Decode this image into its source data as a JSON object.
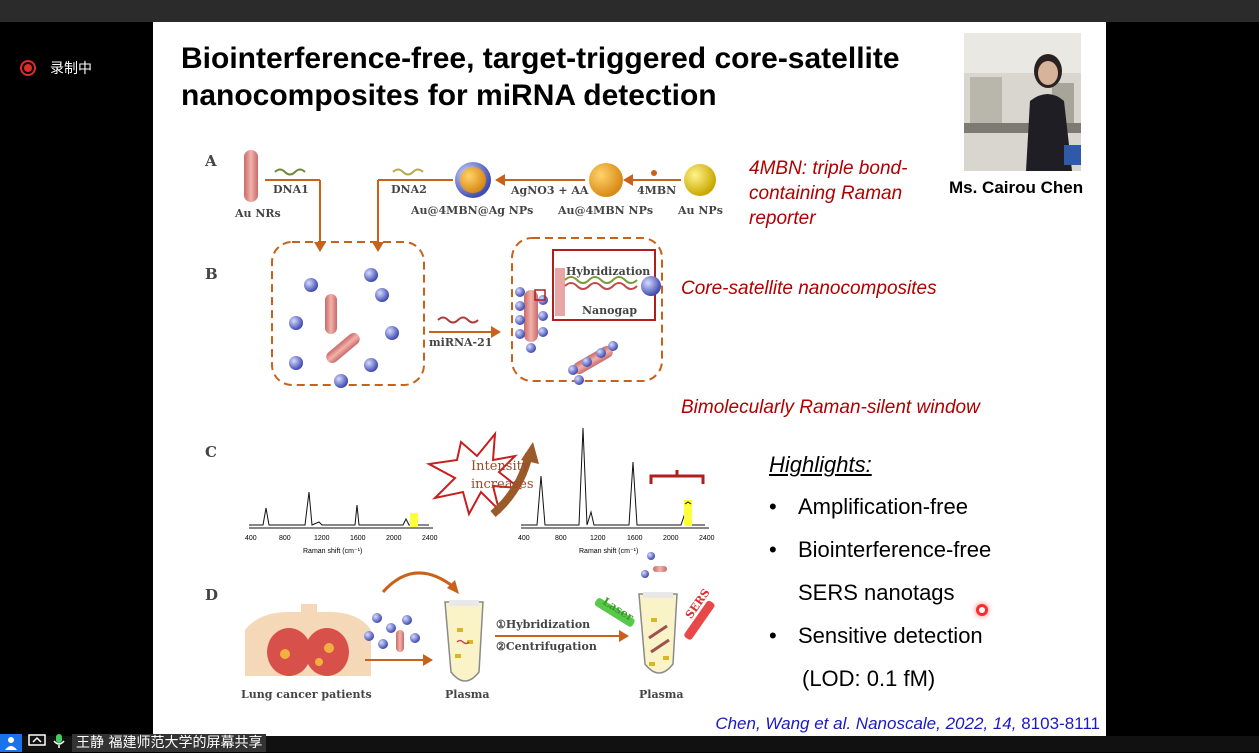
{
  "meeting": {
    "recording_label": "录制中",
    "presenter_name": "王静",
    "share_text": "福建师范大学的屏幕共享"
  },
  "slide": {
    "title": "Biointerference-free, target-triggered core-satellite nanocomposites for miRNA detection",
    "photo_caption": "Ms. Cairou Chen",
    "annotations": {
      "a1": "4MBN: triple bond-containing Raman reporter",
      "a2": "Core-satellite nanocomposites",
      "a3": "Bimolecularly Raman-silent window"
    },
    "highlights_title": "Highlights:",
    "highlights": [
      "Amplification-free",
      "Biointerference-free",
      "SERS nanotags",
      "Sensitive detection",
      "(LOD: 0.1 fM)"
    ],
    "citation": {
      "authors_journal": "Chen, Wang et al. Nanoscale, 2022, 14,",
      "pages": "8103-8111"
    },
    "figure": {
      "panel_labels": [
        "A",
        "B",
        "C",
        "D"
      ],
      "a_texts": [
        "DNA1",
        "Au NRs",
        "DNA2",
        "Au@4MBN@Ag NPs",
        "AgNO3 + AA",
        "Au@4MBN NPs",
        "4MBN",
        "Au NPs"
      ],
      "b_texts": [
        "miRNA-21",
        "Hybridization",
        "Nanogap"
      ],
      "c_texts": [
        "Intensity",
        "increases",
        "Raman shift (cm⁻¹)"
      ],
      "c_ticks": [
        "400",
        "800",
        "1200",
        "1600",
        "2000",
        "2400"
      ],
      "d_texts": [
        "Lung cancer patients",
        "Plasma",
        "①Hybridization",
        "②Centrifugation",
        "Plasma",
        "Laser",
        "SERS"
      ]
    }
  }
}
